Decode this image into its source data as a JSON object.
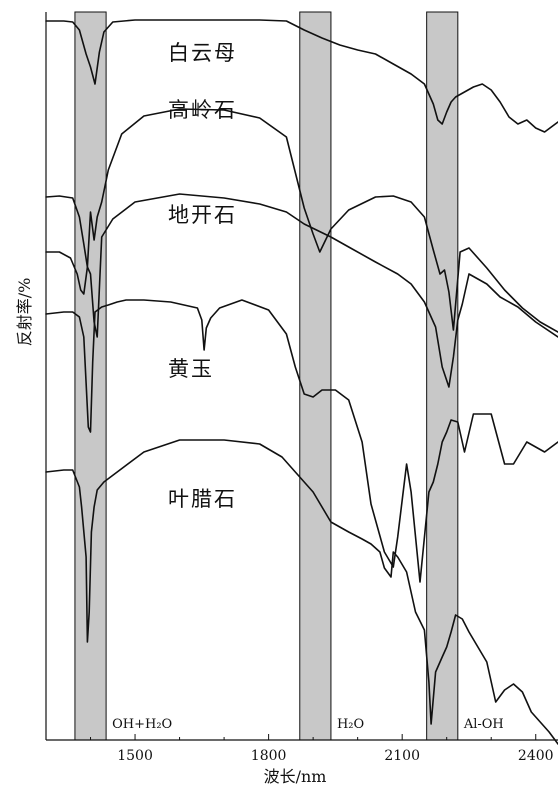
{
  "chart_data": {
    "type": "line",
    "xlabel": "波长/nm",
    "ylabel": "反射率/%",
    "xlim": [
      1300,
      2450
    ],
    "x_ticks": [
      1500,
      1800,
      2100,
      2400
    ],
    "absorption_bands": [
      {
        "label": "OH+H₂O",
        "x": [
          1365,
          1435
        ],
        "color": "#c8c8c8"
      },
      {
        "label": "H₂O",
        "x": [
          1870,
          1940
        ],
        "color": "#c8c8c8"
      },
      {
        "label": "Al-OH",
        "x": [
          2155,
          2225
        ],
        "color": "#c8c8c8"
      }
    ],
    "series": [
      {
        "name": "白云母",
        "x": [
          1300,
          1340,
          1360,
          1375,
          1390,
          1400,
          1410,
          1420,
          1430,
          1450,
          1500,
          1600,
          1700,
          1780,
          1840,
          1880,
          1920,
          1960,
          2000,
          2040,
          2080,
          2120,
          2150,
          2170,
          2180,
          2190,
          2200,
          2210,
          2220,
          2240,
          2260,
          2280,
          2300,
          2320,
          2340,
          2360,
          2380,
          2400,
          2420,
          2450
        ],
        "y": [
          9,
          9,
          10,
          18,
          42,
          55,
          72,
          40,
          20,
          10,
          8,
          8,
          8,
          8,
          9,
          18,
          26,
          33,
          38,
          42,
          52,
          62,
          72,
          92,
          108,
          112,
          100,
          90,
          85,
          80,
          75,
          72,
          78,
          90,
          105,
          112,
          108,
          116,
          120,
          110
        ]
      },
      {
        "name": "高岭石",
        "x": [
          1300,
          1330,
          1360,
          1375,
          1385,
          1393,
          1400,
          1408,
          1415,
          1425,
          1440,
          1470,
          1520,
          1600,
          1700,
          1780,
          1840,
          1880,
          1900,
          1915,
          1940,
          1980,
          2040,
          2080,
          2120,
          2150,
          2170,
          2185,
          2195,
          2205,
          2215,
          2230,
          2250,
          2290,
          2330,
          2370,
          2410,
          2450
        ],
        "y": [
          185,
          184,
          186,
          205,
          232,
          255,
          200,
          228,
          205,
          190,
          158,
          122,
          104,
          97,
          98,
          106,
          125,
          196,
          222,
          240,
          217,
          198,
          185,
          184,
          190,
          205,
          238,
          262,
          258,
          280,
          318,
          240,
          236,
          256,
          278,
          296,
          310,
          320
        ]
      },
      {
        "name": "地开石",
        "x": [
          1300,
          1330,
          1355,
          1370,
          1378,
          1385,
          1393,
          1400,
          1408,
          1415,
          1425,
          1450,
          1500,
          1600,
          1700,
          1780,
          1840,
          1880,
          1940,
          1980,
          2040,
          2090,
          2120,
          2150,
          2175,
          2190,
          2205,
          2215,
          2225,
          2235,
          2250,
          2290,
          2320,
          2360,
          2400,
          2450
        ],
        "y": [
          240,
          240,
          246,
          262,
          278,
          282,
          255,
          262,
          310,
          325,
          225,
          207,
          190,
          182,
          186,
          192,
          200,
          212,
          225,
          235,
          250,
          262,
          272,
          290,
          315,
          355,
          375,
          345,
          308,
          292,
          262,
          272,
          285,
          295,
          310,
          325
        ]
      },
      {
        "name": "黄玉",
        "x": [
          1300,
          1340,
          1360,
          1375,
          1385,
          1395,
          1400,
          1405,
          1410,
          1425,
          1440,
          1460,
          1480,
          1520,
          1580,
          1640,
          1650,
          1655,
          1660,
          1670,
          1690,
          1740,
          1800,
          1840,
          1860,
          1880,
          1900,
          1920,
          1950,
          1980,
          2010,
          2030,
          2060,
          2080,
          2090,
          2100,
          2110,
          2120,
          2140,
          2160,
          2170,
          2180,
          2190,
          2200,
          2210,
          2225,
          2240,
          2260,
          2300,
          2330,
          2350,
          2380,
          2420,
          2450
        ],
        "y": [
          302,
          300,
          300,
          305,
          325,
          415,
          420,
          350,
          300,
          295,
          293,
          290,
          288,
          288,
          290,
          296,
          308,
          338,
          316,
          306,
          296,
          288,
          298,
          322,
          355,
          382,
          385,
          378,
          378,
          388,
          430,
          492,
          540,
          555,
          525,
          488,
          452,
          480,
          570,
          480,
          470,
          452,
          430,
          420,
          408,
          410,
          440,
          402,
          402,
          452,
          452,
          430,
          440,
          430
        ]
      },
      {
        "name": "叶腊石",
        "x": [
          1300,
          1340,
          1360,
          1375,
          1380,
          1390,
          1393,
          1397,
          1402,
          1408,
          1415,
          1430,
          1460,
          1520,
          1600,
          1700,
          1780,
          1830,
          1860,
          1900,
          1940,
          1980,
          2010,
          2030,
          2050,
          2060,
          2075,
          2080,
          2090,
          2110,
          2130,
          2150,
          2160,
          2165,
          2175,
          2190,
          2200,
          2210,
          2220,
          2235,
          2250,
          2290,
          2310,
          2330,
          2350,
          2370,
          2390,
          2410,
          2430,
          2450
        ],
        "y": [
          460,
          458,
          458,
          475,
          495,
          545,
          630,
          600,
          520,
          495,
          478,
          470,
          460,
          440,
          428,
          428,
          432,
          445,
          460,
          480,
          510,
          520,
          527,
          532,
          540,
          556,
          565,
          540,
          545,
          560,
          600,
          618,
          670,
          712,
          660,
          645,
          635,
          620,
          603,
          607,
          620,
          650,
          690,
          678,
          672,
          680,
          700,
          710,
          720,
          732
        ]
      }
    ]
  },
  "labels": {
    "white_mica": "白云母",
    "kaolinite": "高岭石",
    "dickite": "地开石",
    "topaz": "黄玉",
    "pyrophyllite": "叶腊石"
  }
}
